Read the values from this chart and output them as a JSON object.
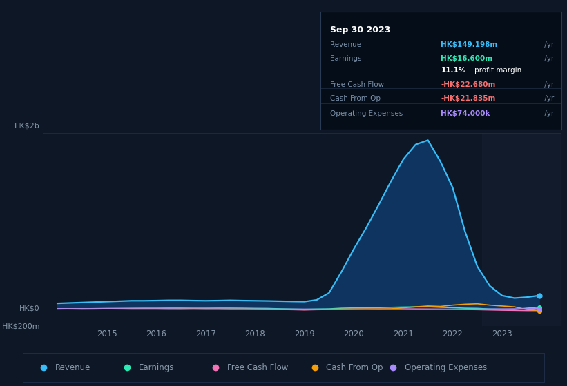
{
  "bg_color": "#0e1726",
  "plot_bg_color": "#0e1726",
  "text_color": "#8899aa",
  "grid_color": "#1e2d45",
  "years": [
    2014.0,
    2014.25,
    2014.5,
    2014.75,
    2015.0,
    2015.25,
    2015.5,
    2015.75,
    2016.0,
    2016.25,
    2016.5,
    2016.75,
    2017.0,
    2017.25,
    2017.5,
    2017.75,
    2018.0,
    2018.25,
    2018.5,
    2018.75,
    2019.0,
    2019.25,
    2019.5,
    2019.75,
    2020.0,
    2020.25,
    2020.5,
    2020.75,
    2021.0,
    2021.25,
    2021.5,
    2021.75,
    2022.0,
    2022.25,
    2022.5,
    2022.75,
    2023.0,
    2023.25,
    2023.5,
    2023.75
  ],
  "revenue": [
    60,
    65,
    70,
    75,
    80,
    85,
    90,
    90,
    92,
    95,
    95,
    92,
    90,
    92,
    95,
    92,
    90,
    88,
    85,
    82,
    80,
    100,
    180,
    420,
    680,
    920,
    1180,
    1450,
    1700,
    1870,
    1920,
    1680,
    1380,
    880,
    480,
    260,
    149,
    120,
    130,
    149
  ],
  "earnings": [
    -5,
    -3,
    -2,
    0,
    2,
    3,
    4,
    5,
    5,
    6,
    6,
    5,
    5,
    6,
    6,
    5,
    3,
    2,
    -2,
    -5,
    -8,
    -5,
    -3,
    5,
    8,
    10,
    12,
    15,
    18,
    20,
    22,
    15,
    10,
    5,
    3,
    -5,
    -8,
    -10,
    5,
    16.6
  ],
  "free_cash_flow": [
    -3,
    -4,
    -5,
    -4,
    -3,
    -4,
    -5,
    -5,
    -5,
    -6,
    -6,
    -5,
    -6,
    -6,
    -7,
    -7,
    -8,
    -9,
    -10,
    -12,
    -15,
    -12,
    -10,
    -8,
    -6,
    -5,
    -5,
    -4,
    -3,
    -4,
    -5,
    -6,
    -8,
    -10,
    -12,
    -15,
    -18,
    -20,
    -22,
    -22.68
  ],
  "cash_from_op": [
    -2,
    -3,
    -4,
    -4,
    -3,
    -3,
    -4,
    -4,
    -4,
    -5,
    -5,
    -4,
    -5,
    -5,
    -6,
    -6,
    -7,
    -8,
    -9,
    -10,
    -12,
    -10,
    -8,
    -6,
    -5,
    -4,
    -4,
    -3,
    10,
    20,
    30,
    25,
    40,
    50,
    55,
    40,
    30,
    20,
    -10,
    -21.835
  ],
  "op_expenses": [
    -1,
    -2,
    -2,
    -2,
    -2,
    -2,
    -3,
    -3,
    -3,
    -3,
    -4,
    -4,
    -4,
    -4,
    -5,
    -5,
    -5,
    -5,
    -6,
    -6,
    -6,
    -7,
    -7,
    -8,
    -8,
    -8,
    -9,
    -9,
    -9,
    -10,
    -10,
    -9,
    -8,
    -7,
    -6,
    -5,
    -4,
    -3,
    -2,
    0.074
  ],
  "revenue_color": "#38bdf8",
  "earnings_color": "#2ee8b5",
  "fcf_color": "#f472b6",
  "cashop_color": "#f59e0b",
  "opex_color": "#a78bfa",
  "revenue_fill": "#0f3460",
  "ylim": [
    -200,
    2000
  ],
  "xlim": [
    2013.7,
    2024.2
  ],
  "ytick_positions": [
    -200,
    0,
    2000
  ],
  "ytick_labels": [
    "-HK$200m",
    "HK$0",
    "HK$2b"
  ],
  "xticks": [
    2015,
    2016,
    2017,
    2018,
    2019,
    2020,
    2021,
    2022,
    2023
  ],
  "hk2b_label": "HK$2b",
  "legend_labels": [
    "Revenue",
    "Earnings",
    "Free Cash Flow",
    "Cash From Op",
    "Operating Expenses"
  ],
  "tooltip_title": "Sep 30 2023",
  "tooltip_bg": "#050d18",
  "tooltip_border": "#2a3a55",
  "shade_start": 2022.6,
  "shade_color": "#162030",
  "tooltip_rows": [
    {
      "label": "Revenue",
      "value": "HK$149.198m",
      "unit": " /yr",
      "value_color": "#38bdf8",
      "divider": false
    },
    {
      "label": "Earnings",
      "value": "HK$16.600m",
      "unit": " /yr",
      "value_color": "#2ee8b5",
      "divider": false
    },
    {
      "label": "",
      "value": "11.1%",
      "unit": " profit margin",
      "value_color": "#ffffff",
      "divider": false
    },
    {
      "label": "Free Cash Flow",
      "value": "-HK$22.680m",
      "unit": " /yr",
      "value_color": "#f87171",
      "divider": true
    },
    {
      "label": "Cash From Op",
      "value": "-HK$21.835m",
      "unit": " /yr",
      "value_color": "#f87171",
      "divider": true
    },
    {
      "label": "Operating Expenses",
      "value": "HK$74.000k",
      "unit": " /yr",
      "value_color": "#a78bfa",
      "divider": true
    }
  ]
}
